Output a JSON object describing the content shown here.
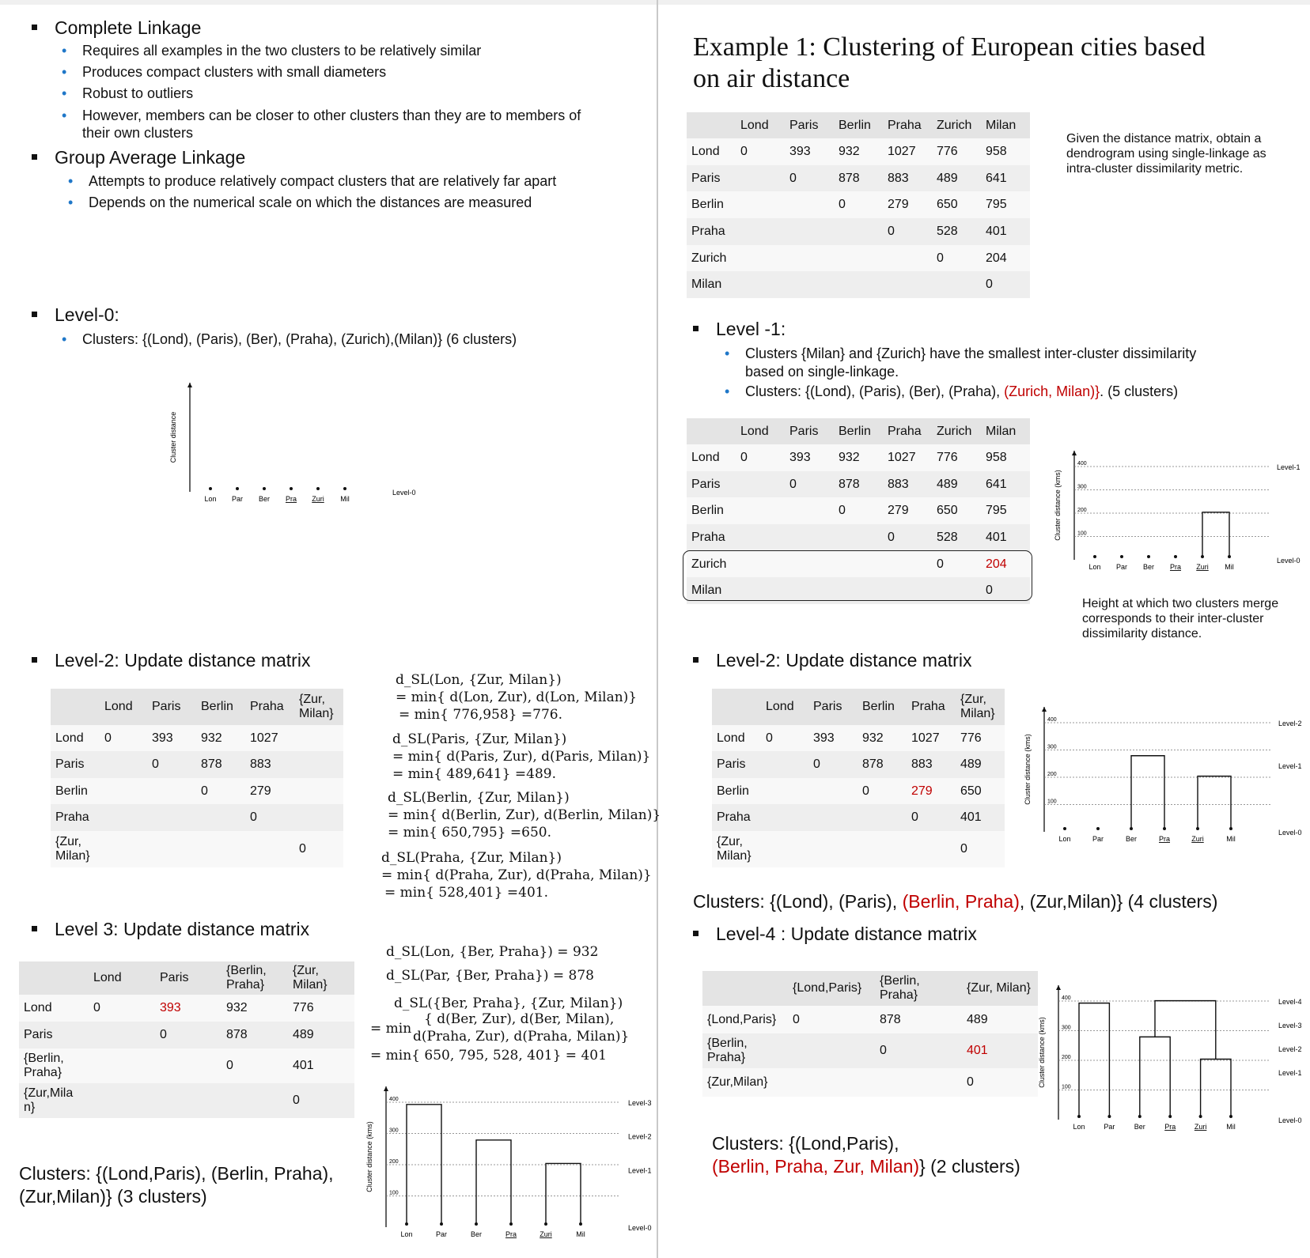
{
  "left": {
    "complete": {
      "title": "Complete Linkage",
      "bullets": [
        "Requires all examples in the two clusters to be relatively similar",
        "Produces compact clusters with small diameters",
        "Robust to outliers",
        "However, members can be closer to other clusters than they are to members of",
        "their own clusters"
      ]
    },
    "group": {
      "title": "Group Average Linkage",
      "bullets": [
        "Attempts to produce relatively compact clusters that are relatively far apart",
        "Depends on the numerical scale on which the distances are measured"
      ]
    },
    "level0": {
      "title": "Level-0:",
      "bullet": "Clusters: {(Lond), (Paris), (Ber), (Praha), (Zurich),(Milan)} (6 clusters)"
    },
    "level2": {
      "title": "Level-2: Update distance matrix",
      "formulas": [
        [
          "d_SL(Lon, {Zur, Milan})",
          "= min{ d(Lon, Zur), d(Lon, Milan)}",
          "= min{ 776,958} =776."
        ],
        [
          "d_SL(Paris, {Zur, Milan})",
          "= min{ d(Paris, Zur), d(Paris, Milan)}",
          "= min{ 489,641} =489."
        ],
        [
          "d_SL(Berlin, {Zur, Milan})",
          "= min{ d(Berlin, Zur), d(Berlin, Milan)}",
          "= min{ 650,795} =650."
        ],
        [
          "d_SL(Praha, {Zur, Milan})",
          "= min{ d(Praha, Zur), d(Praha, Milan)}",
          "= min{ 528,401} =401."
        ]
      ]
    },
    "level3": {
      "title": "Level 3: Update distance matrix",
      "f1": "d_SL(Lon, {Ber, Praha}) = 932",
      "f2": "d_SL(Par, {Ber, Praha}) = 878",
      "f3a": "d_SL({Ber, Praha}, {Zur, Milan})",
      "f3b": "{ d(Ber, Zur), d(Ber, Milan),",
      "f3eq": "= min",
      "f3c": "d(Praha, Zur), d(Praha, Milan)}",
      "f3d": "= min{ 650, 795, 528, 401} = 401",
      "clusters_line1": "Clusters: {(Lond,Paris), (Berlin, Praha),",
      "clusters_line2": "(Zur,Milan)} (3 clusters)"
    }
  },
  "right": {
    "example_title_1": "Example 1: Clustering of European cities based",
    "example_title_2": "on air distance",
    "given_1": "Given the distance matrix, obtain a",
    "given_2": "dendrogram using single-linkage as",
    "given_3": "intra-cluster dissimilarity metric.",
    "level_m1": {
      "title": "Level -1:",
      "b1a": "Clusters {Milan} and {Zurich} have the smallest inter-cluster dissimilarity",
      "b1b": "based on single-linkage.",
      "b2_pre": "Clusters: {(Lond), (Paris), (Ber), (Praha), ",
      "b2_red": "(Zurich, Milan)}",
      "b2_post": ".  (5 clusters)"
    },
    "height_note_1": "Height at which two clusters merge",
    "height_note_2": "corresponds to their inter-cluster",
    "height_note_3": "dissimilarity distance.",
    "level2": {
      "title": "Level-2: Update distance matrix",
      "clusters_pre": "Clusters: {(Lond), (Paris), ",
      "clusters_red": "(Berlin, Praha)",
      "clusters_post": ", (Zur,Milan)} (4 clusters)"
    },
    "level4": {
      "title": "Level-4 : Update distance matrix",
      "clusters_line1": "Clusters: {(Lond,Paris),",
      "clusters_red": "(Berlin, Praha, Zur, Milan)",
      "clusters_post": "} (2 clusters)"
    }
  },
  "tables": {
    "full_header": [
      "",
      "Lond",
      "Paris",
      "Berlin",
      "Praha",
      "Zurich",
      "Milan"
    ],
    "full_rows": [
      [
        "Lond",
        "0",
        "393",
        "932",
        "1027",
        "776",
        "958"
      ],
      [
        "Paris",
        "",
        "0",
        "878",
        "883",
        "489",
        "641"
      ],
      [
        "Berlin",
        "",
        "",
        "0",
        "279",
        "650",
        "795"
      ],
      [
        "Praha",
        "",
        "",
        "",
        "0",
        "528",
        "401"
      ],
      [
        "Zurich",
        "",
        "",
        "",
        "",
        "0",
        "204"
      ],
      [
        "Milan",
        "",
        "",
        "",
        "",
        "",
        "0"
      ]
    ],
    "lvl2_header": [
      "",
      "Lond",
      "Paris",
      "Berlin",
      "Praha",
      "{Zur, Milan}"
    ],
    "lvl2_left_rows": [
      [
        "Lond",
        "0",
        "393",
        "932",
        "1027",
        ""
      ],
      [
        "Paris",
        "",
        "0",
        "878",
        "883",
        ""
      ],
      [
        "Berlin",
        "",
        "",
        "0",
        "279",
        ""
      ],
      [
        "Praha",
        "",
        "",
        "",
        "0",
        ""
      ],
      [
        "{Zur, Milan}",
        "",
        "",
        "",
        "",
        "0"
      ]
    ],
    "lvl2_right_rows": [
      [
        "Lond",
        "0",
        "393",
        "932",
        "1027",
        "776"
      ],
      [
        "Paris",
        "",
        "0",
        "878",
        "883",
        "489"
      ],
      [
        "Berlin",
        "",
        "",
        "0",
        "279",
        "650"
      ],
      [
        "Praha",
        "",
        "",
        "",
        "0",
        "401"
      ],
      [
        "{Zur, Milan}",
        "",
        "",
        "",
        "",
        "0"
      ]
    ],
    "lvl3_header": [
      "",
      "Lond",
      "Paris",
      "{Berlin, Praha}",
      "{Zur, Milan}"
    ],
    "lvl3_rows": [
      [
        "Lond",
        "0",
        "393",
        "932",
        "776"
      ],
      [
        "Paris",
        "",
        "0",
        "878",
        "489"
      ],
      [
        "{Berlin, Praha}",
        "",
        "",
        "0",
        "401"
      ],
      [
        "{Zur,Mila n}",
        "",
        "",
        "",
        "0"
      ]
    ],
    "lvl4_header": [
      "",
      "{Lond,Paris}",
      "{Berlin, Praha}",
      "{Zur, Milan}"
    ],
    "lvl4_rows": [
      [
        "{Lond,Paris}",
        "0",
        "878",
        "489"
      ],
      [
        "{Berlin, Praha}",
        "",
        "0",
        "401"
      ],
      [
        "{Zur,Milan}",
        "",
        "",
        "0"
      ]
    ]
  },
  "chart_data": [
    {
      "type": "dendrogram",
      "ylabel": "Cluster distance",
      "leaves": [
        "Lon",
        "Par",
        "Ber",
        "Pra",
        "Zuri",
        "Mil"
      ],
      "merges": [],
      "level_labels": [
        "Level-0"
      ]
    },
    {
      "type": "dendrogram",
      "ylabel": "Cluster distance (kms)",
      "yticks": [
        100,
        200,
        300,
        400
      ],
      "ylim": [
        0,
        400
      ],
      "leaves": [
        "Lon",
        "Par",
        "Ber",
        "Pra",
        "Zuri",
        "Mil"
      ],
      "merges": [
        {
          "clusters": [
            "Zuri",
            "Mil"
          ],
          "height": 204
        }
      ],
      "level_labels": [
        "Level-1",
        "Level-0"
      ]
    },
    {
      "type": "dendrogram",
      "ylabel": "Cluster distance (kms)",
      "yticks": [
        100,
        200,
        300,
        400
      ],
      "ylim": [
        0,
        400
      ],
      "leaves": [
        "Lon",
        "Par",
        "Ber",
        "Pra",
        "Zuri",
        "Mil"
      ],
      "merges": [
        {
          "clusters": [
            "Zuri",
            "Mil"
          ],
          "height": 204
        },
        {
          "clusters": [
            "Ber",
            "Pra"
          ],
          "height": 279
        }
      ],
      "level_labels": [
        "Level-2",
        "Level-1",
        "Level-0"
      ]
    },
    {
      "type": "dendrogram",
      "ylabel": "Cluster distance (kms)",
      "yticks": [
        100,
        200,
        300,
        400
      ],
      "ylim": [
        0,
        400
      ],
      "leaves": [
        "Lon",
        "Par",
        "Ber",
        "Pra",
        "Zuri",
        "Mil"
      ],
      "merges": [
        {
          "clusters": [
            "Zuri",
            "Mil"
          ],
          "height": 204
        },
        {
          "clusters": [
            "Ber",
            "Pra"
          ],
          "height": 279
        },
        {
          "clusters": [
            "Lon",
            "Par"
          ],
          "height": 393
        }
      ],
      "level_labels": [
        "Level-3",
        "Level-2",
        "Level-1",
        "Level-0"
      ]
    },
    {
      "type": "dendrogram",
      "ylabel": "Cluster distance (kms)",
      "yticks": [
        100,
        200,
        300,
        400
      ],
      "ylim": [
        0,
        400
      ],
      "leaves": [
        "Lon",
        "Par",
        "Ber",
        "Pra",
        "Zuri",
        "Mil"
      ],
      "merges": [
        {
          "clusters": [
            "Zuri",
            "Mil"
          ],
          "height": 204
        },
        {
          "clusters": [
            "Ber",
            "Pra"
          ],
          "height": 279
        },
        {
          "clusters": [
            "Lon",
            "Par"
          ],
          "height": 393
        },
        {
          "clusters": [
            "{Ber,Pra}",
            "{Zuri,Mil}"
          ],
          "height": 401
        }
      ],
      "level_labels": [
        "Level-4",
        "Level-3",
        "Level-2",
        "Level-1",
        "Level-0"
      ]
    }
  ]
}
